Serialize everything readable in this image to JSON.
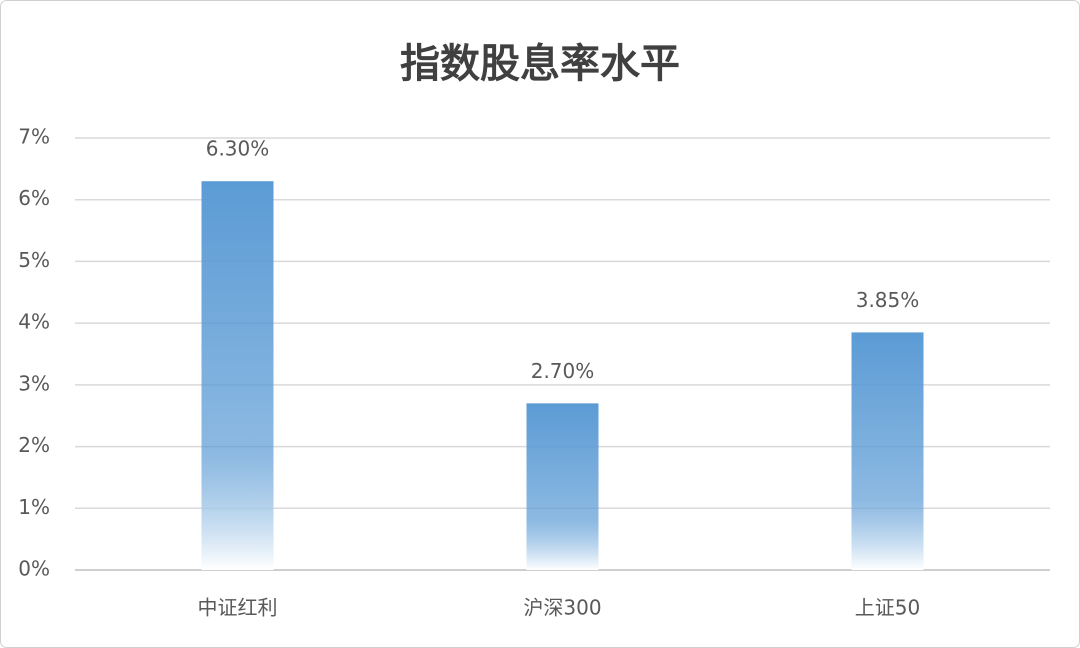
{
  "chart_data": {
    "type": "bar",
    "title": "指数股息率水平",
    "categories": [
      "中证红利",
      "沪深300",
      "上证50"
    ],
    "values": [
      6.3,
      2.7,
      3.85
    ],
    "value_labels": [
      "6.30%",
      "2.70%",
      "3.85%"
    ],
    "color": "#5b9bd5",
    "ylim": [
      0,
      7
    ],
    "yticks": [
      {
        "value": 0,
        "label": "0%"
      },
      {
        "value": 1,
        "label": "1%"
      },
      {
        "value": 2,
        "label": "2%"
      },
      {
        "value": 3,
        "label": "3%"
      },
      {
        "value": 4,
        "label": "4%"
      },
      {
        "value": 5,
        "label": "5%"
      },
      {
        "value": 6,
        "label": "6%"
      },
      {
        "value": 7,
        "label": "7%"
      }
    ],
    "grid": true
  }
}
